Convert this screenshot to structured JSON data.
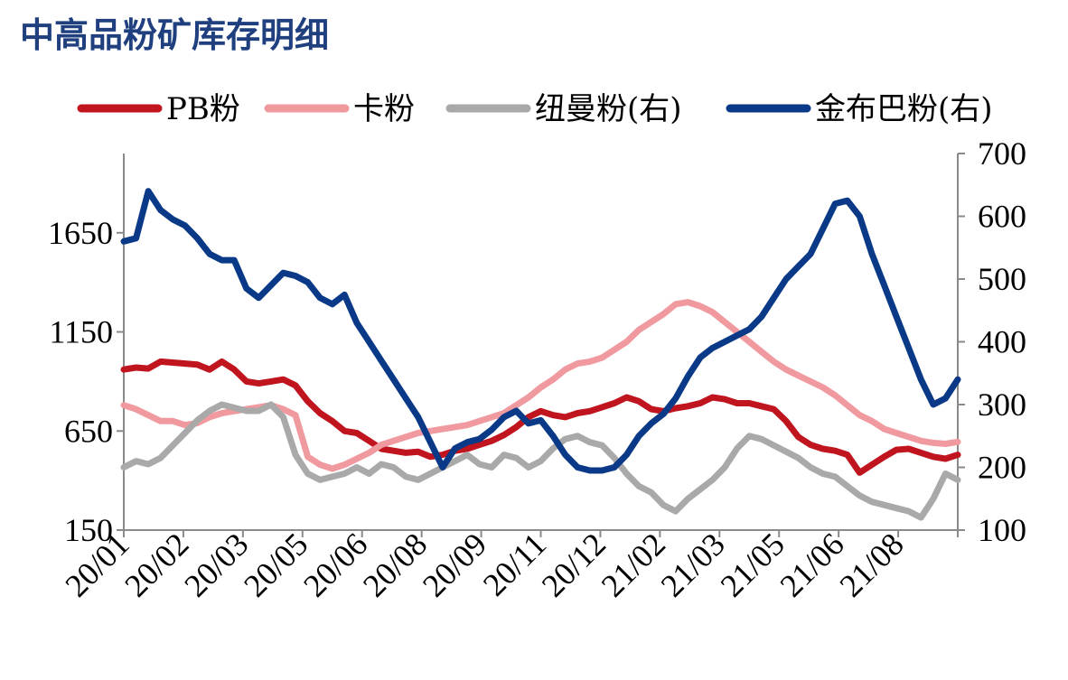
{
  "chart_data": {
    "type": "line",
    "title": "中高品粉矿库存明细",
    "x_tick_labels": [
      "20/01",
      "20/02",
      "20/03",
      "20/05",
      "20/06",
      "20/08",
      "20/09",
      "20/11",
      "20/12",
      "21/02",
      "21/03",
      "21/05",
      "21/06",
      "21/08"
    ],
    "y_left": {
      "ylim": [
        150,
        2050
      ],
      "ticks": [
        150,
        650,
        1150,
        1650
      ]
    },
    "y_right": {
      "ylim": [
        100,
        700
      ],
      "ticks": [
        100,
        200,
        300,
        400,
        500,
        600,
        700
      ]
    },
    "legend_position": "top",
    "grid": false,
    "series": [
      {
        "name": "PB粉",
        "axis": "left",
        "color": "#c0141e",
        "points": [
          [
            0,
            960
          ],
          [
            1,
            970
          ],
          [
            2,
            965
          ],
          [
            3,
            1000
          ],
          [
            4,
            995
          ],
          [
            5,
            990
          ],
          [
            6,
            985
          ],
          [
            7,
            960
          ],
          [
            8,
            1000
          ],
          [
            9,
            960
          ],
          [
            10,
            900
          ],
          [
            11,
            890
          ],
          [
            12,
            900
          ],
          [
            13,
            910
          ],
          [
            14,
            880
          ],
          [
            15,
            800
          ],
          [
            16,
            740
          ],
          [
            17,
            700
          ],
          [
            18,
            650
          ],
          [
            19,
            640
          ],
          [
            20,
            600
          ],
          [
            21,
            560
          ],
          [
            22,
            550
          ],
          [
            23,
            540
          ],
          [
            24,
            545
          ],
          [
            25,
            520
          ],
          [
            26,
            530
          ],
          [
            27,
            550
          ],
          [
            28,
            560
          ],
          [
            29,
            580
          ],
          [
            30,
            600
          ],
          [
            31,
            630
          ],
          [
            32,
            670
          ],
          [
            33,
            720
          ],
          [
            34,
            750
          ],
          [
            35,
            730
          ],
          [
            36,
            720
          ],
          [
            37,
            740
          ],
          [
            38,
            750
          ],
          [
            39,
            770
          ],
          [
            40,
            790
          ],
          [
            41,
            820
          ],
          [
            42,
            800
          ],
          [
            43,
            760
          ],
          [
            44,
            750
          ],
          [
            45,
            765
          ],
          [
            46,
            775
          ],
          [
            47,
            790
          ],
          [
            48,
            820
          ],
          [
            49,
            810
          ],
          [
            50,
            790
          ],
          [
            51,
            790
          ],
          [
            52,
            775
          ],
          [
            53,
            760
          ],
          [
            54,
            700
          ],
          [
            55,
            620
          ],
          [
            56,
            580
          ],
          [
            57,
            560
          ],
          [
            58,
            550
          ],
          [
            59,
            530
          ],
          [
            60,
            440
          ],
          [
            61,
            480
          ],
          [
            62,
            520
          ],
          [
            63,
            555
          ],
          [
            64,
            560
          ],
          [
            65,
            540
          ],
          [
            66,
            520
          ],
          [
            67,
            510
          ],
          [
            68,
            530
          ]
        ]
      },
      {
        "name": "卡粉",
        "axis": "left",
        "color": "#f09aa0",
        "points": [
          [
            0,
            780
          ],
          [
            1,
            760
          ],
          [
            2,
            730
          ],
          [
            3,
            700
          ],
          [
            4,
            700
          ],
          [
            5,
            680
          ],
          [
            6,
            690
          ],
          [
            7,
            720
          ],
          [
            8,
            740
          ],
          [
            9,
            750
          ],
          [
            10,
            760
          ],
          [
            11,
            770
          ],
          [
            12,
            780
          ],
          [
            13,
            760
          ],
          [
            14,
            730
          ],
          [
            15,
            520
          ],
          [
            16,
            480
          ],
          [
            17,
            460
          ],
          [
            18,
            480
          ],
          [
            19,
            510
          ],
          [
            20,
            540
          ],
          [
            21,
            580
          ],
          [
            22,
            600
          ],
          [
            23,
            620
          ],
          [
            24,
            640
          ],
          [
            25,
            650
          ],
          [
            26,
            660
          ],
          [
            27,
            670
          ],
          [
            28,
            680
          ],
          [
            29,
            700
          ],
          [
            30,
            720
          ],
          [
            31,
            740
          ],
          [
            32,
            780
          ],
          [
            33,
            820
          ],
          [
            34,
            870
          ],
          [
            35,
            910
          ],
          [
            36,
            960
          ],
          [
            37,
            990
          ],
          [
            38,
            1000
          ],
          [
            39,
            1020
          ],
          [
            40,
            1060
          ],
          [
            41,
            1100
          ],
          [
            42,
            1160
          ],
          [
            43,
            1200
          ],
          [
            44,
            1240
          ],
          [
            45,
            1290
          ],
          [
            46,
            1300
          ],
          [
            47,
            1280
          ],
          [
            48,
            1250
          ],
          [
            49,
            1200
          ],
          [
            50,
            1150
          ],
          [
            51,
            1100
          ],
          [
            52,
            1050
          ],
          [
            53,
            1000
          ],
          [
            54,
            960
          ],
          [
            55,
            930
          ],
          [
            56,
            900
          ],
          [
            57,
            870
          ],
          [
            58,
            830
          ],
          [
            59,
            780
          ],
          [
            60,
            730
          ],
          [
            61,
            700
          ],
          [
            62,
            660
          ],
          [
            63,
            640
          ],
          [
            64,
            620
          ],
          [
            65,
            600
          ],
          [
            66,
            590
          ],
          [
            67,
            585
          ],
          [
            68,
            595
          ]
        ]
      },
      {
        "name": "纽曼粉(右)",
        "axis": "right",
        "color": "#a9a9a9",
        "points": [
          [
            0,
            200
          ],
          [
            1,
            210
          ],
          [
            2,
            205
          ],
          [
            3,
            215
          ],
          [
            4,
            235
          ],
          [
            5,
            255
          ],
          [
            6,
            275
          ],
          [
            7,
            290
          ],
          [
            8,
            300
          ],
          [
            9,
            295
          ],
          [
            10,
            290
          ],
          [
            11,
            290
          ],
          [
            12,
            300
          ],
          [
            13,
            280
          ],
          [
            14,
            220
          ],
          [
            15,
            190
          ],
          [
            16,
            180
          ],
          [
            17,
            185
          ],
          [
            18,
            190
          ],
          [
            19,
            200
          ],
          [
            20,
            190
          ],
          [
            21,
            205
          ],
          [
            22,
            200
          ],
          [
            23,
            185
          ],
          [
            24,
            180
          ],
          [
            25,
            190
          ],
          [
            26,
            200
          ],
          [
            27,
            210
          ],
          [
            28,
            220
          ],
          [
            29,
            205
          ],
          [
            30,
            200
          ],
          [
            31,
            220
          ],
          [
            32,
            215
          ],
          [
            33,
            200
          ],
          [
            34,
            210
          ],
          [
            35,
            230
          ],
          [
            36,
            245
          ],
          [
            37,
            250
          ],
          [
            38,
            240
          ],
          [
            39,
            235
          ],
          [
            40,
            215
          ],
          [
            41,
            190
          ],
          [
            42,
            170
          ],
          [
            43,
            160
          ],
          [
            44,
            140
          ],
          [
            45,
            130
          ],
          [
            46,
            150
          ],
          [
            47,
            165
          ],
          [
            48,
            180
          ],
          [
            49,
            200
          ],
          [
            50,
            230
          ],
          [
            51,
            250
          ],
          [
            52,
            245
          ],
          [
            53,
            235
          ],
          [
            54,
            225
          ],
          [
            55,
            215
          ],
          [
            56,
            200
          ],
          [
            57,
            190
          ],
          [
            58,
            185
          ],
          [
            59,
            170
          ],
          [
            60,
            155
          ],
          [
            61,
            145
          ],
          [
            62,
            140
          ],
          [
            63,
            135
          ],
          [
            64,
            130
          ],
          [
            65,
            120
          ],
          [
            66,
            150
          ],
          [
            67,
            190
          ],
          [
            68,
            180
          ]
        ]
      },
      {
        "name": "金布巴粉(右)",
        "axis": "right",
        "color": "#0a3a87",
        "points": [
          [
            0,
            560
          ],
          [
            1,
            565
          ],
          [
            2,
            640
          ],
          [
            3,
            610
          ],
          [
            4,
            595
          ],
          [
            5,
            585
          ],
          [
            6,
            565
          ],
          [
            7,
            540
          ],
          [
            8,
            530
          ],
          [
            9,
            530
          ],
          [
            10,
            485
          ],
          [
            11,
            470
          ],
          [
            12,
            490
          ],
          [
            13,
            510
          ],
          [
            14,
            505
          ],
          [
            15,
            495
          ],
          [
            16,
            470
          ],
          [
            17,
            460
          ],
          [
            18,
            475
          ],
          [
            19,
            430
          ],
          [
            20,
            400
          ],
          [
            21,
            370
          ],
          [
            22,
            340
          ],
          [
            23,
            310
          ],
          [
            24,
            280
          ],
          [
            25,
            240
          ],
          [
            26,
            200
          ],
          [
            27,
            230
          ],
          [
            28,
            240
          ],
          [
            29,
            245
          ],
          [
            30,
            260
          ],
          [
            31,
            280
          ],
          [
            32,
            290
          ],
          [
            33,
            270
          ],
          [
            34,
            275
          ],
          [
            35,
            250
          ],
          [
            36,
            220
          ],
          [
            37,
            200
          ],
          [
            38,
            195
          ],
          [
            39,
            195
          ],
          [
            40,
            200
          ],
          [
            41,
            220
          ],
          [
            42,
            250
          ],
          [
            43,
            270
          ],
          [
            44,
            285
          ],
          [
            45,
            310
          ],
          [
            46,
            345
          ],
          [
            47,
            375
          ],
          [
            48,
            390
          ],
          [
            49,
            400
          ],
          [
            50,
            410
          ],
          [
            51,
            420
          ],
          [
            52,
            440
          ],
          [
            53,
            470
          ],
          [
            54,
            500
          ],
          [
            55,
            520
          ],
          [
            56,
            540
          ],
          [
            57,
            580
          ],
          [
            58,
            620
          ],
          [
            59,
            625
          ],
          [
            60,
            600
          ],
          [
            61,
            540
          ],
          [
            62,
            490
          ],
          [
            63,
            440
          ],
          [
            64,
            390
          ],
          [
            65,
            340
          ],
          [
            66,
            300
          ],
          [
            67,
            310
          ],
          [
            68,
            340
          ]
        ]
      }
    ]
  }
}
